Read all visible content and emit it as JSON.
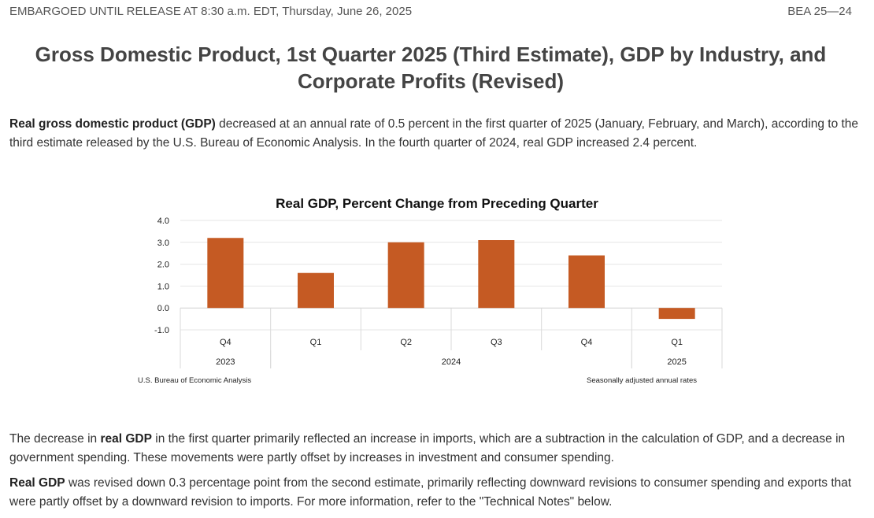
{
  "header": {
    "embargo": "EMBARGOED UNTIL RELEASE AT 8:30 a.m. EDT, Thursday, June 26, 2025",
    "release_id": "BEA 25—24"
  },
  "title": "Gross Domestic Product, 1st Quarter 2025 (Third Estimate), GDP by Industry, and Corporate Profits (Revised)",
  "para1": {
    "bold": "Real gross domestic product (GDP)",
    "text": " decreased at an annual rate of 0.5 percent in the first quarter of 2025 (January, February, and March), according to the third estimate released by the U.S. Bureau of Economic Analysis. In the fourth quarter of 2024, real GDP increased 2.4 percent."
  },
  "para2": {
    "pre": "The decrease in ",
    "bold": "real GDP",
    "text": " in the first quarter primarily reflected an increase in imports, which are a subtraction in the calculation of GDP, and a decrease in government spending. These movements were partly offset by increases in investment and consumer spending."
  },
  "para3": {
    "bold": "Real GDP",
    "text": " was revised down 0.3 percentage point from the second estimate, primarily reflecting downward revisions to consumer spending and exports that were partly offset by a downward revision to imports. For more information, refer to the \"Technical Notes\" below."
  },
  "chart_data": {
    "type": "bar",
    "title": "Real GDP, Percent Change from Preceding Quarter",
    "categories": [
      "Q4",
      "Q1",
      "Q2",
      "Q3",
      "Q4",
      "Q1"
    ],
    "year_groups": [
      {
        "label": "2023",
        "span": 1
      },
      {
        "label": "2024",
        "span": 4
      },
      {
        "label": "2025",
        "span": 1
      }
    ],
    "values": [
      3.2,
      1.6,
      3.0,
      3.1,
      2.4,
      -0.5
    ],
    "ylim": [
      -1.0,
      4.0
    ],
    "yticks": [
      "4.0",
      "3.0",
      "2.0",
      "1.0",
      "0.0",
      "-1.0"
    ],
    "grid": true,
    "bar_color": "#C55A23",
    "source": "U.S. Bureau of Economic Analysis",
    "note": "Seasonally adjusted annual rates"
  }
}
